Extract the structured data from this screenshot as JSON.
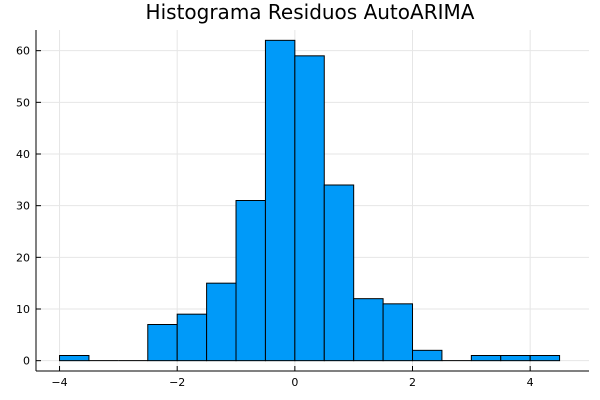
{
  "chart_data": {
    "type": "histogram",
    "title": "Histograma Residuos AutoARIMA",
    "xlabel": "",
    "ylabel": "",
    "bin_edges": [
      -4.0,
      -3.5,
      -3.0,
      -2.5,
      -2.0,
      -1.5,
      -1.0,
      -0.5,
      0.0,
      0.5,
      1.0,
      1.5,
      2.0,
      2.5,
      3.0,
      3.5,
      4.0,
      4.5
    ],
    "counts": [
      1,
      0,
      0,
      7,
      9,
      15,
      31,
      62,
      59,
      34,
      12,
      11,
      2,
      0,
      1,
      1,
      1
    ],
    "xlim": [
      -4.4,
      5.0
    ],
    "ylim": [
      -2,
      64
    ],
    "x_ticks": [
      -4,
      -2,
      0,
      2,
      4
    ],
    "x_tick_labels": [
      "−4",
      "−2",
      "0",
      "2",
      "4"
    ],
    "y_ticks": [
      0,
      10,
      20,
      30,
      40,
      50,
      60
    ],
    "y_tick_labels": [
      "0",
      "10",
      "20",
      "30",
      "40",
      "50",
      "60"
    ],
    "grid": true,
    "legend": "none",
    "bar_color": "#009af9",
    "edge_color": "#000000"
  }
}
